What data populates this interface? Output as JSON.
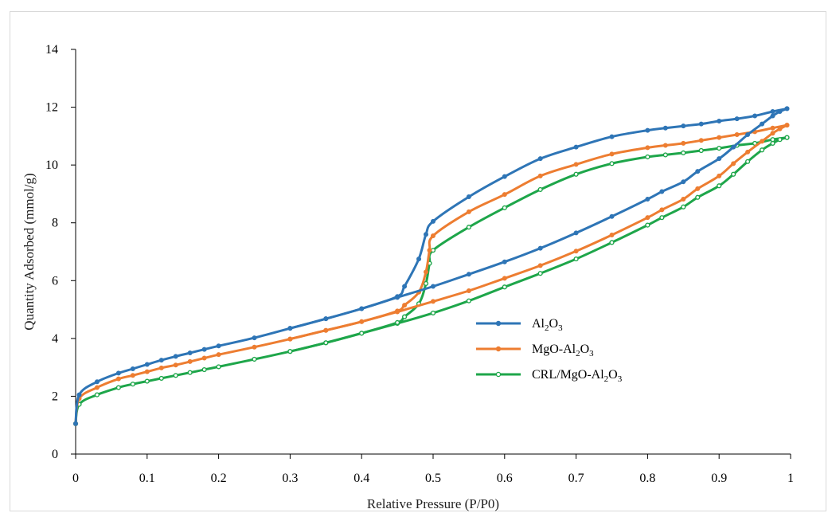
{
  "chart_data": {
    "type": "line",
    "title": "",
    "xlabel": "Relative Pressure (P/P0)",
    "ylabel": "Quantity Adsorbed (mmol/g)",
    "xlim": [
      0,
      1
    ],
    "ylim": [
      0,
      14
    ],
    "x_ticks": [
      "0",
      "0.1",
      "0.2",
      "0.3",
      "0.4",
      "0.5",
      "0.6",
      "0.7",
      "0.8",
      "0.9",
      "1"
    ],
    "y_ticks": [
      "0",
      "2",
      "4",
      "6",
      "8",
      "10",
      "12",
      "14"
    ],
    "grid": false,
    "legend_position": "center-right",
    "series": [
      {
        "name": "Al2O3",
        "legend": {
          "base1": "Al",
          "sub1": "2",
          "base2": "O",
          "sub2": "3"
        },
        "color": "#2e75b6",
        "marker": "filled",
        "adsorption": [
          [
            0.0,
            1.05
          ],
          [
            0.005,
            2.05
          ],
          [
            0.03,
            2.5
          ],
          [
            0.06,
            2.8
          ],
          [
            0.08,
            2.95
          ],
          [
            0.1,
            3.1
          ],
          [
            0.12,
            3.25
          ],
          [
            0.14,
            3.38
          ],
          [
            0.16,
            3.5
          ],
          [
            0.18,
            3.62
          ],
          [
            0.2,
            3.74
          ],
          [
            0.25,
            4.02
          ],
          [
            0.3,
            4.35
          ],
          [
            0.35,
            4.68
          ],
          [
            0.4,
            5.03
          ],
          [
            0.45,
            5.42
          ],
          [
            0.5,
            5.8
          ],
          [
            0.55,
            6.22
          ],
          [
            0.6,
            6.65
          ],
          [
            0.65,
            7.12
          ],
          [
            0.7,
            7.65
          ],
          [
            0.75,
            8.22
          ],
          [
            0.8,
            8.82
          ],
          [
            0.82,
            9.08
          ],
          [
            0.85,
            9.42
          ],
          [
            0.87,
            9.78
          ],
          [
            0.9,
            10.22
          ],
          [
            0.92,
            10.62
          ],
          [
            0.94,
            11.05
          ],
          [
            0.96,
            11.42
          ],
          [
            0.975,
            11.7
          ],
          [
            0.985,
            11.85
          ],
          [
            0.995,
            11.95
          ]
        ],
        "desorption": [
          [
            0.995,
            11.95
          ],
          [
            0.975,
            11.85
          ],
          [
            0.95,
            11.7
          ],
          [
            0.925,
            11.6
          ],
          [
            0.9,
            11.52
          ],
          [
            0.875,
            11.42
          ],
          [
            0.85,
            11.35
          ],
          [
            0.825,
            11.28
          ],
          [
            0.8,
            11.2
          ],
          [
            0.75,
            10.98
          ],
          [
            0.7,
            10.62
          ],
          [
            0.65,
            10.22
          ],
          [
            0.6,
            9.6
          ],
          [
            0.55,
            8.9
          ],
          [
            0.5,
            8.05
          ],
          [
            0.49,
            7.6
          ],
          [
            0.48,
            6.75
          ],
          [
            0.46,
            5.8
          ],
          [
            0.45,
            5.45
          ],
          [
            0.4,
            5.03
          ],
          [
            0.35,
            4.68
          ],
          [
            0.3,
            4.35
          ]
        ]
      },
      {
        "name": "MgO-Al2O3",
        "legend": {
          "base1": "MgO-Al",
          "sub1": "2",
          "base2": "O",
          "sub2": "3"
        },
        "color": "#ed7d31",
        "marker": "filled",
        "adsorption": [
          [
            0.0,
            1.05
          ],
          [
            0.005,
            1.92
          ],
          [
            0.03,
            2.3
          ],
          [
            0.06,
            2.6
          ],
          [
            0.08,
            2.72
          ],
          [
            0.1,
            2.85
          ],
          [
            0.12,
            2.98
          ],
          [
            0.14,
            3.08
          ],
          [
            0.16,
            3.2
          ],
          [
            0.18,
            3.32
          ],
          [
            0.2,
            3.44
          ],
          [
            0.25,
            3.7
          ],
          [
            0.3,
            3.98
          ],
          [
            0.35,
            4.28
          ],
          [
            0.4,
            4.58
          ],
          [
            0.45,
            4.92
          ],
          [
            0.5,
            5.28
          ],
          [
            0.55,
            5.65
          ],
          [
            0.6,
            6.08
          ],
          [
            0.65,
            6.52
          ],
          [
            0.7,
            7.02
          ],
          [
            0.75,
            7.58
          ],
          [
            0.8,
            8.18
          ],
          [
            0.82,
            8.45
          ],
          [
            0.85,
            8.82
          ],
          [
            0.87,
            9.18
          ],
          [
            0.9,
            9.62
          ],
          [
            0.92,
            10.05
          ],
          [
            0.94,
            10.45
          ],
          [
            0.96,
            10.82
          ],
          [
            0.975,
            11.1
          ],
          [
            0.985,
            11.25
          ],
          [
            0.995,
            11.38
          ]
        ],
        "desorption": [
          [
            0.995,
            11.38
          ],
          [
            0.975,
            11.28
          ],
          [
            0.95,
            11.15
          ],
          [
            0.925,
            11.05
          ],
          [
            0.9,
            10.95
          ],
          [
            0.875,
            10.85
          ],
          [
            0.85,
            10.75
          ],
          [
            0.825,
            10.68
          ],
          [
            0.8,
            10.6
          ],
          [
            0.75,
            10.38
          ],
          [
            0.7,
            10.02
          ],
          [
            0.65,
            9.62
          ],
          [
            0.6,
            8.98
          ],
          [
            0.55,
            8.38
          ],
          [
            0.5,
            7.55
          ],
          [
            0.495,
            7.05
          ],
          [
            0.49,
            6.3
          ],
          [
            0.48,
            5.6
          ],
          [
            0.46,
            5.15
          ],
          [
            0.45,
            4.95
          ],
          [
            0.4,
            4.58
          ],
          [
            0.35,
            4.28
          ],
          [
            0.3,
            3.98
          ]
        ]
      },
      {
        "name": "CRL/MgO-Al2O3",
        "legend": {
          "base1": "CRL/MgO-Al",
          "sub1": "2",
          "base2": "O",
          "sub2": "3"
        },
        "color": "#1ea64a",
        "marker": "hollow",
        "adsorption": [
          [
            0.0,
            1.05
          ],
          [
            0.005,
            1.72
          ],
          [
            0.03,
            2.05
          ],
          [
            0.06,
            2.3
          ],
          [
            0.08,
            2.42
          ],
          [
            0.1,
            2.52
          ],
          [
            0.12,
            2.62
          ],
          [
            0.14,
            2.72
          ],
          [
            0.16,
            2.82
          ],
          [
            0.18,
            2.92
          ],
          [
            0.2,
            3.02
          ],
          [
            0.25,
            3.28
          ],
          [
            0.3,
            3.55
          ],
          [
            0.35,
            3.85
          ],
          [
            0.4,
            4.18
          ],
          [
            0.45,
            4.52
          ],
          [
            0.5,
            4.88
          ],
          [
            0.55,
            5.3
          ],
          [
            0.6,
            5.78
          ],
          [
            0.65,
            6.25
          ],
          [
            0.7,
            6.75
          ],
          [
            0.75,
            7.32
          ],
          [
            0.8,
            7.92
          ],
          [
            0.82,
            8.18
          ],
          [
            0.85,
            8.55
          ],
          [
            0.87,
            8.88
          ],
          [
            0.9,
            9.28
          ],
          [
            0.92,
            9.68
          ],
          [
            0.94,
            10.12
          ],
          [
            0.96,
            10.52
          ],
          [
            0.975,
            10.75
          ],
          [
            0.985,
            10.88
          ],
          [
            0.995,
            10.95
          ]
        ],
        "desorption": [
          [
            0.995,
            10.95
          ],
          [
            0.975,
            10.88
          ],
          [
            0.95,
            10.75
          ],
          [
            0.925,
            10.68
          ],
          [
            0.9,
            10.58
          ],
          [
            0.875,
            10.5
          ],
          [
            0.85,
            10.42
          ],
          [
            0.825,
            10.35
          ],
          [
            0.8,
            10.28
          ],
          [
            0.75,
            10.05
          ],
          [
            0.7,
            9.68
          ],
          [
            0.65,
            9.15
          ],
          [
            0.6,
            8.52
          ],
          [
            0.55,
            7.85
          ],
          [
            0.5,
            7.05
          ],
          [
            0.495,
            6.6
          ],
          [
            0.49,
            5.9
          ],
          [
            0.48,
            5.2
          ],
          [
            0.46,
            4.75
          ],
          [
            0.45,
            4.55
          ],
          [
            0.4,
            4.18
          ],
          [
            0.35,
            3.85
          ],
          [
            0.3,
            3.55
          ]
        ]
      }
    ]
  }
}
